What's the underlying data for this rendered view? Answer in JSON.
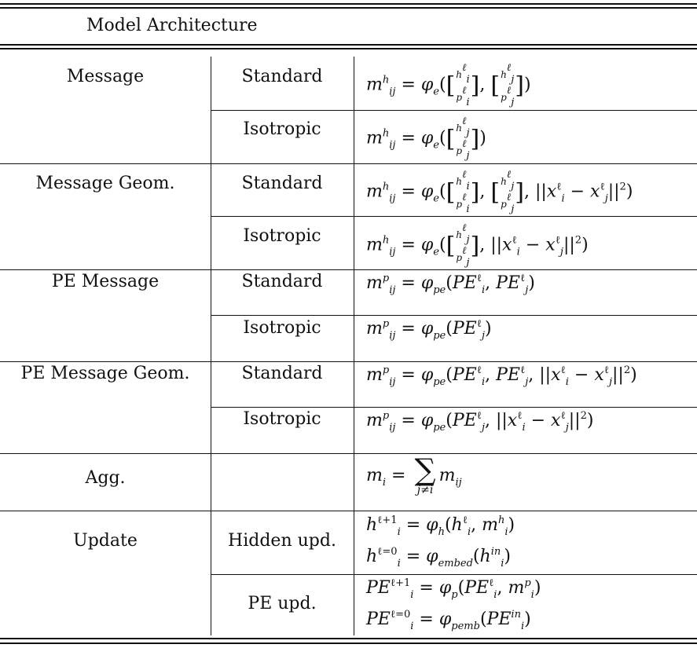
{
  "header": {
    "title": "Model Architecture"
  },
  "rows": [
    {
      "category": "Message",
      "variant": "Standard"
    },
    {
      "category": "",
      "variant": "Isotropic"
    },
    {
      "category": "Message Geom.",
      "variant": "Standard"
    },
    {
      "category": "",
      "variant": "Isotropic"
    },
    {
      "category": "PE Message",
      "variant": "Standard"
    },
    {
      "category": "",
      "variant": "Isotropic"
    },
    {
      "category": "PE Message Geom.",
      "variant": "Standard"
    },
    {
      "category": "",
      "variant": "Isotropic"
    },
    {
      "category": "Agg.",
      "variant": ""
    },
    {
      "category": "Update",
      "variant": "Hidden upd."
    },
    {
      "category": "",
      "variant": "PE upd."
    }
  ]
}
